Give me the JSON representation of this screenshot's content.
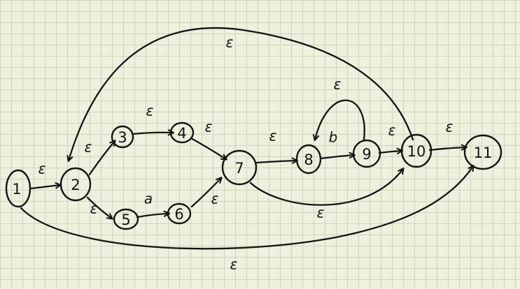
{
  "states": [
    "1",
    "2",
    "3",
    "4",
    "5",
    "6",
    "7",
    "8",
    "9",
    "10",
    "11"
  ],
  "transitions": [
    {
      "from": "1",
      "to": "2",
      "label": "ε"
    },
    {
      "from": "2",
      "to": "3",
      "label": "ε"
    },
    {
      "from": "2",
      "to": "5",
      "label": "ε"
    },
    {
      "from": "3",
      "to": "4",
      "label": "ε"
    },
    {
      "from": "5",
      "to": "6",
      "label": "a"
    },
    {
      "from": "4",
      "to": "7",
      "label": "ε"
    },
    {
      "from": "6",
      "to": "7",
      "label": "ε"
    },
    {
      "from": "7",
      "to": "8",
      "label": "ε"
    },
    {
      "from": "8",
      "to": "9",
      "label": "b"
    },
    {
      "from": "9",
      "to": "8",
      "label": "ε"
    },
    {
      "from": "9",
      "to": "10",
      "label": "ε"
    },
    {
      "from": "10",
      "to": "11",
      "label": "ε"
    },
    {
      "from": "7",
      "to": "10",
      "label": "ε"
    },
    {
      "from": "10",
      "to": "2",
      "label": "ε"
    },
    {
      "from": "1",
      "to": "11",
      "label": "ε"
    }
  ]
}
